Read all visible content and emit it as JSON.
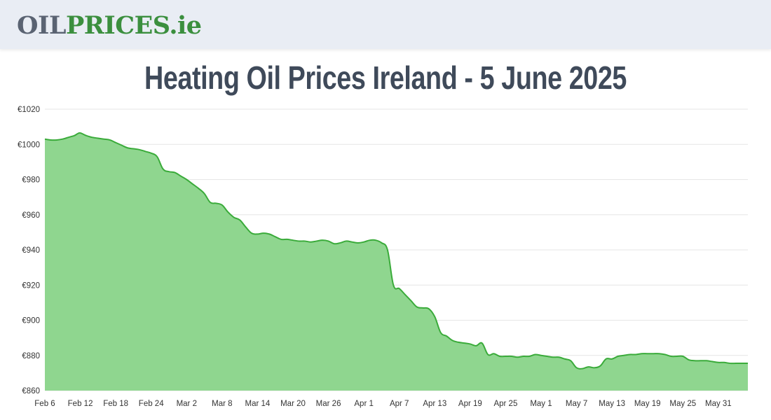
{
  "site": {
    "logo_part1": "OIL",
    "logo_part2": "PRICES",
    "logo_part3": ".ie"
  },
  "page": {
    "title": "Heating Oil Prices Ireland - 5 June 2025"
  },
  "colors": {
    "header_bg": "#e9edf4",
    "line": "#3aab3a",
    "area_fill": "#8fd68f",
    "grid": "#e6e6e6",
    "title": "#3f4a5a"
  },
  "chart_data": {
    "type": "area",
    "title": "Heating Oil Prices Ireland - 5 June 2025",
    "xlabel": "",
    "ylabel": "",
    "grid": true,
    "ylim": [
      860,
      1020
    ],
    "y_ticks": [
      "€1020",
      "€1000",
      "€980",
      "€960",
      "€940",
      "€920",
      "€900",
      "€880",
      "€860"
    ],
    "y_tick_values": [
      1020,
      1000,
      980,
      960,
      940,
      920,
      900,
      880,
      860
    ],
    "x_ticks": [
      "Feb 6",
      "Feb 12",
      "Feb 18",
      "Feb 24",
      "Mar 2",
      "Mar 8",
      "Mar 14",
      "Mar 20",
      "Mar 26",
      "Apr 1",
      "Apr 7",
      "Apr 13",
      "Apr 19",
      "Apr 25",
      "May 1",
      "May 7",
      "May 13",
      "May 19",
      "May 25",
      "May 31"
    ],
    "x_tick_day_index": [
      0,
      6,
      12,
      18,
      24,
      30,
      36,
      42,
      48,
      54,
      60,
      66,
      72,
      78,
      84,
      90,
      96,
      102,
      108,
      114
    ],
    "x_day_range": [
      0,
      119
    ],
    "series": [
      {
        "points": [
          [
            0,
            1003
          ],
          [
            1,
            1002.5
          ],
          [
            2,
            1002.5
          ],
          [
            3,
            1003
          ],
          [
            4,
            1004
          ],
          [
            5,
            1005
          ],
          [
            5.5,
            1006
          ],
          [
            6,
            1006.5
          ],
          [
            7,
            1005
          ],
          [
            8,
            1004
          ],
          [
            9,
            1003.5
          ],
          [
            10,
            1003
          ],
          [
            11,
            1002.5
          ],
          [
            12,
            1001
          ],
          [
            13,
            999.5
          ],
          [
            14,
            998
          ],
          [
            15,
            997.5
          ],
          [
            16,
            997
          ],
          [
            17,
            996
          ],
          [
            18,
            995
          ],
          [
            19,
            993
          ],
          [
            20,
            986
          ],
          [
            21,
            984.5
          ],
          [
            22,
            984
          ],
          [
            23,
            982
          ],
          [
            24,
            980
          ],
          [
            25,
            977.5
          ],
          [
            26,
            975
          ],
          [
            27,
            972
          ],
          [
            28,
            967
          ],
          [
            29,
            966.5
          ],
          [
            30,
            965.5
          ],
          [
            31,
            961.5
          ],
          [
            32,
            958.5
          ],
          [
            33,
            957
          ],
          [
            34,
            953
          ],
          [
            35,
            949.5
          ],
          [
            36,
            949
          ],
          [
            37,
            949.5
          ],
          [
            38,
            949
          ],
          [
            39,
            947.5
          ],
          [
            40,
            946
          ],
          [
            41,
            946
          ],
          [
            42,
            945.5
          ],
          [
            43,
            945
          ],
          [
            44,
            945
          ],
          [
            45,
            944.5
          ],
          [
            46,
            945
          ],
          [
            47,
            945.5
          ],
          [
            48,
            945
          ],
          [
            49,
            943.5
          ],
          [
            50,
            944
          ],
          [
            51,
            945
          ],
          [
            52,
            944.5
          ],
          [
            53,
            944
          ],
          [
            54,
            944.5
          ],
          [
            55,
            945.5
          ],
          [
            56,
            945.5
          ],
          [
            57,
            944
          ],
          [
            58,
            940
          ],
          [
            59,
            920
          ],
          [
            60,
            918
          ],
          [
            61,
            914.5
          ],
          [
            62,
            911
          ],
          [
            63,
            907.5
          ],
          [
            64,
            907
          ],
          [
            65,
            906.5
          ],
          [
            66,
            902
          ],
          [
            67,
            893
          ],
          [
            68,
            891
          ],
          [
            69,
            888.5
          ],
          [
            70,
            887.5
          ],
          [
            71,
            887
          ],
          [
            72,
            886.5
          ],
          [
            73,
            885.5
          ],
          [
            74,
            887
          ],
          [
            75,
            880.5
          ],
          [
            76,
            881
          ],
          [
            77,
            879.5
          ],
          [
            78,
            879.5
          ],
          [
            79,
            879.5
          ],
          [
            80,
            879
          ],
          [
            81,
            879.5
          ],
          [
            82,
            879.5
          ],
          [
            83,
            880.5
          ],
          [
            84,
            880
          ],
          [
            85,
            879.5
          ],
          [
            86,
            879
          ],
          [
            87,
            879
          ],
          [
            88,
            878
          ],
          [
            89,
            877
          ],
          [
            90,
            873
          ],
          [
            91,
            872.5
          ],
          [
            92,
            873.5
          ],
          [
            93,
            873
          ],
          [
            94,
            874
          ],
          [
            95,
            878
          ],
          [
            96,
            878
          ],
          [
            97,
            879.5
          ],
          [
            98,
            880
          ],
          [
            99,
            880.5
          ],
          [
            100,
            880.5
          ],
          [
            101,
            881
          ],
          [
            102,
            881
          ],
          [
            103,
            881
          ],
          [
            104,
            881
          ],
          [
            105,
            880.5
          ],
          [
            106,
            879.5
          ],
          [
            107,
            879.5
          ],
          [
            108,
            879.5
          ],
          [
            109,
            877.5
          ],
          [
            110,
            877
          ],
          [
            111,
            877
          ],
          [
            112,
            877
          ],
          [
            113,
            876.5
          ],
          [
            114,
            876
          ],
          [
            115,
            876
          ],
          [
            116,
            875.5
          ],
          [
            117,
            875.5
          ],
          [
            118,
            875.5
          ],
          [
            119,
            875.5
          ]
        ]
      }
    ]
  }
}
